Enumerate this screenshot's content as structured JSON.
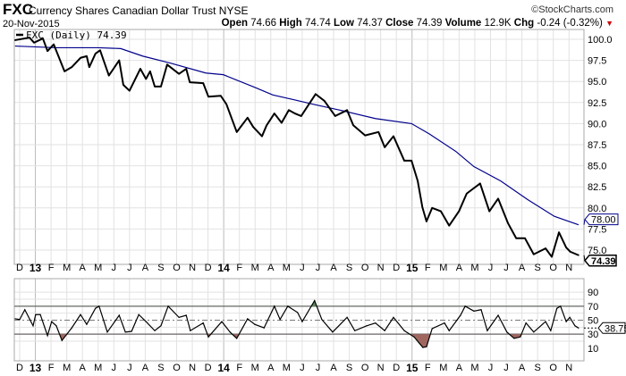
{
  "header": {
    "symbol": "FXC",
    "name": "Currency Shares Canadian Dollar Trust",
    "exchange": "NYSE",
    "brand": "©StockCharts.com",
    "date": "20-Nov-2015",
    "open_label": "Open",
    "open": "74.66",
    "high_label": "High",
    "high": "74.74",
    "low_label": "Low",
    "low": "74.37",
    "close_label": "Close",
    "close": "74.39",
    "volume_label": "Volume",
    "volume": "12.9K",
    "chg_label": "Chg",
    "chg": "-0.24 (-0.32%)",
    "chg_direction": "down"
  },
  "colors": {
    "price": "#000000",
    "moving_average": "#00008b",
    "oversold_fill": "#a0675f",
    "overbought_fill": "#5a8a5a",
    "grid": "#dddddd"
  },
  "chart_data": [
    {
      "type": "line",
      "legend": "FXC (Daily) 74.39",
      "legend_placement": "top-left",
      "grid": true,
      "ylim": [
        73.5,
        101.2
      ],
      "yticks": [
        "100.0",
        "97.5",
        "95.0",
        "92.5",
        "90.0",
        "87.5",
        "85.0",
        "82.5",
        "80.0",
        "77.5",
        "75.0"
      ],
      "xticks": [
        "D",
        "13",
        "F",
        "M",
        "A",
        "M",
        "J",
        "J",
        "A",
        "S",
        "O",
        "N",
        "D",
        "14",
        "F",
        "M",
        "A",
        "M",
        "J",
        "J",
        "A",
        "S",
        "O",
        "N",
        "D",
        "15",
        "F",
        "M",
        "A",
        "M",
        "J",
        "J",
        "A",
        "S",
        "O",
        "N"
      ],
      "last_value_labels": {
        "moving_average": "78.00",
        "price": "74.39"
      },
      "series": [
        {
          "name": "FXC (Daily)",
          "x": [
            "2012-11-22",
            "2012-12-20",
            "2012-12-29",
            "2013-01-15",
            "2013-01-24",
            "2013-02-05",
            "2013-02-26",
            "2013-03-12",
            "2013-03-29",
            "2013-04-10",
            "2013-04-15",
            "2013-04-27",
            "2013-05-06",
            "2013-05-23",
            "2013-06-12",
            "2013-06-20",
            "2013-07-02",
            "2013-07-23",
            "2013-08-03",
            "2013-08-11",
            "2013-08-20",
            "2013-09-01",
            "2013-09-13",
            "2013-10-06",
            "2013-10-20",
            "2013-10-27",
            "2013-11-22",
            "2013-12-02",
            "2013-12-26",
            "2014-01-06",
            "2014-01-26",
            "2014-02-16",
            "2014-02-27",
            "2014-03-16",
            "2014-03-25",
            "2014-04-09",
            "2014-04-23",
            "2014-05-07",
            "2014-05-19",
            "2014-05-31",
            "2014-06-28",
            "2014-07-15",
            "2014-08-05",
            "2014-08-28",
            "2014-09-09",
            "2014-10-02",
            "2014-10-28",
            "2014-11-09",
            "2014-11-26",
            "2014-12-17",
            "2014-12-31",
            "2015-01-12",
            "2015-01-21",
            "2015-01-29",
            "2015-02-09",
            "2015-02-26",
            "2015-03-14",
            "2015-04-02",
            "2015-04-17",
            "2015-05-13",
            "2015-05-31",
            "2015-06-17",
            "2015-07-06",
            "2015-07-22",
            "2015-08-08",
            "2015-08-25",
            "2015-09-17",
            "2015-09-29",
            "2015-10-13",
            "2015-10-27",
            "2015-11-04",
            "2015-11-20"
          ],
          "values": [
            99.9,
            100.2,
            99.6,
            100.1,
            98.6,
            99.4,
            96.2,
            96.7,
            97.8,
            98.0,
            96.7,
            98.3,
            98.7,
            95.7,
            97.5,
            94.6,
            93.9,
            96.5,
            95.3,
            96.2,
            94.4,
            94.4,
            97.0,
            95.9,
            96.5,
            94.9,
            94.8,
            93.2,
            93.3,
            92.3,
            89.0,
            90.7,
            89.6,
            88.5,
            89.8,
            91.2,
            90.1,
            91.6,
            91.2,
            90.9,
            93.5,
            92.7,
            90.9,
            91.6,
            89.8,
            88.6,
            89.0,
            87.2,
            88.5,
            85.6,
            85.6,
            83.2,
            80.1,
            78.4,
            80.0,
            79.6,
            77.9,
            79.6,
            81.7,
            82.9,
            79.6,
            81.1,
            78.2,
            76.4,
            76.4,
            74.5,
            75.2,
            74.2,
            77.1,
            75.3,
            74.8,
            74.39
          ]
        },
        {
          "x": [
            "2012-11-22",
            "2013-02-10",
            "2013-05-03",
            "2013-06-15",
            "2013-07-28",
            "2013-09-18",
            "2013-11-27",
            "2013-12-31",
            "2014-03-02",
            "2014-04-06",
            "2014-05-19",
            "2014-06-23",
            "2014-08-14",
            "2014-10-22",
            "2014-12-31",
            "2015-02-03",
            "2015-03-27",
            "2015-05-01",
            "2015-06-22",
            "2015-08-13",
            "2015-10-04",
            "2015-11-20"
          ],
          "values": [
            99.2,
            99.0,
            99.0,
            98.9,
            98.0,
            97.2,
            96.0,
            95.8,
            94.3,
            93.4,
            92.8,
            92.3,
            91.6,
            90.6,
            90.0,
            88.8,
            86.7,
            84.9,
            83.2,
            81.0,
            79.0,
            78.0
          ]
        }
      ]
    },
    {
      "type": "line",
      "grid": true,
      "ylim": [
        0,
        100
      ],
      "yticks": [
        "90",
        "70",
        "50",
        "30",
        "10"
      ],
      "reference_lines": [
        70,
        50,
        30
      ],
      "last_value_label": "38.75",
      "xticks": [
        "D",
        "13",
        "F",
        "M",
        "A",
        "M",
        "J",
        "J",
        "A",
        "S",
        "O",
        "N",
        "D",
        "14",
        "F",
        "M",
        "A",
        "M",
        "J",
        "J",
        "A",
        "S",
        "O",
        "N",
        "D",
        "15",
        "F",
        "M",
        "A",
        "M",
        "J",
        "J",
        "A",
        "S",
        "O",
        "N"
      ],
      "series": [
        {
          "x": [
            "2012-11-22",
            "2012-12-01",
            "2012-12-11",
            "2012-12-27",
            "2013-01-01",
            "2013-01-10",
            "2013-01-24",
            "2013-02-01",
            "2013-02-10",
            "2013-02-21",
            "2013-03-12",
            "2013-03-29",
            "2013-04-10",
            "2013-04-27",
            "2013-05-04",
            "2013-05-20",
            "2013-06-12",
            "2013-06-24",
            "2013-07-06",
            "2013-07-20",
            "2013-08-03",
            "2013-08-20",
            "2013-09-01",
            "2013-09-15",
            "2013-10-06",
            "2013-10-20",
            "2013-10-28",
            "2013-11-22",
            "2013-12-02",
            "2013-12-28",
            "2014-01-13",
            "2014-01-26",
            "2014-02-16",
            "2014-03-02",
            "2014-03-20",
            "2014-04-09",
            "2014-04-20",
            "2014-05-05",
            "2014-05-24",
            "2014-06-02",
            "2014-06-26",
            "2014-07-10",
            "2014-07-31",
            "2014-08-28",
            "2014-09-12",
            "2014-10-05",
            "2014-10-22",
            "2014-11-09",
            "2014-11-26",
            "2014-12-17",
            "2015-01-05",
            "2015-01-22",
            "2015-01-29",
            "2015-02-09",
            "2015-03-05",
            "2015-03-14",
            "2015-04-05",
            "2015-04-14",
            "2015-05-01",
            "2015-05-15",
            "2015-05-27",
            "2015-06-17",
            "2015-07-04",
            "2015-07-18",
            "2015-07-30",
            "2015-08-10",
            "2015-08-25",
            "2015-09-17",
            "2015-09-27",
            "2015-10-09",
            "2015-10-16",
            "2015-10-27",
            "2015-11-03",
            "2015-11-13",
            "2015-11-20"
          ],
          "values": [
            52,
            51,
            65,
            42,
            58,
            58,
            28,
            48,
            42,
            21,
            39,
            58,
            44,
            67,
            70,
            33,
            57,
            33,
            34,
            58,
            48,
            35,
            42,
            70,
            54,
            57,
            35,
            46,
            26,
            48,
            33,
            24,
            52,
            44,
            39,
            70,
            51,
            70,
            61,
            48,
            78,
            51,
            33,
            54,
            35,
            42,
            46,
            35,
            54,
            35,
            26,
            11,
            12,
            38,
            46,
            35,
            57,
            70,
            63,
            65,
            35,
            57,
            33,
            24,
            26,
            46,
            33,
            48,
            35,
            67,
            70,
            48,
            54,
            42,
            38.75
          ]
        }
      ]
    }
  ]
}
